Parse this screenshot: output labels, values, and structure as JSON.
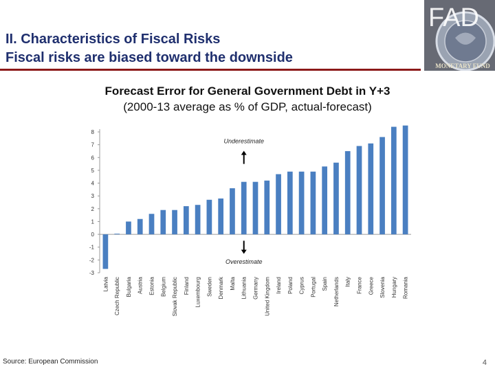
{
  "slide": {
    "title_line1": "II. Characteristics of Fiscal Risks",
    "title_line2": "Fiscal risks are biased toward the downside",
    "logo_text": "FAD",
    "logo_sub": "MONETARY FUND",
    "source": "Source: European Commission",
    "page_number": "4"
  },
  "chart_data": {
    "type": "bar",
    "title": "Forecast Error for General Government Debt in Y+3",
    "subtitle": "(2000-13 average as % of GDP, actual-forecast)",
    "categories": [
      "Latvia",
      "Czech Republic",
      "Bulgaria",
      "Austria",
      "Estonia",
      "Belgium",
      "Slovak Republic",
      "Finland",
      "Luxembourg",
      "Sweden",
      "Denmark",
      "Malta",
      "Lithuania",
      "Germany",
      "United Kingdom",
      "Ireland",
      "Poland",
      "Cyprus",
      "Portugal",
      "Spain",
      "Netherlands",
      "Italy",
      "France",
      "Greece",
      "Slovenia",
      "Hungary",
      "Romania"
    ],
    "values": [
      -2.7,
      0.05,
      1.0,
      1.2,
      1.6,
      1.9,
      1.9,
      2.2,
      2.3,
      2.7,
      2.8,
      3.6,
      4.1,
      4.1,
      4.2,
      4.7,
      4.9,
      4.9,
      4.9,
      5.3,
      5.6,
      6.5,
      6.9,
      7.1,
      7.6,
      8.4,
      8.5
    ],
    "yticks": [
      8,
      7,
      6,
      5,
      4,
      3,
      2,
      1,
      0,
      -1,
      -2,
      -3
    ],
    "ylim": [
      -3,
      8
    ],
    "bar_color": "#4a7fc1",
    "annotations": {
      "top": "Underestimate",
      "bottom": "Overestimate"
    },
    "xlabel": "",
    "ylabel": ""
  }
}
